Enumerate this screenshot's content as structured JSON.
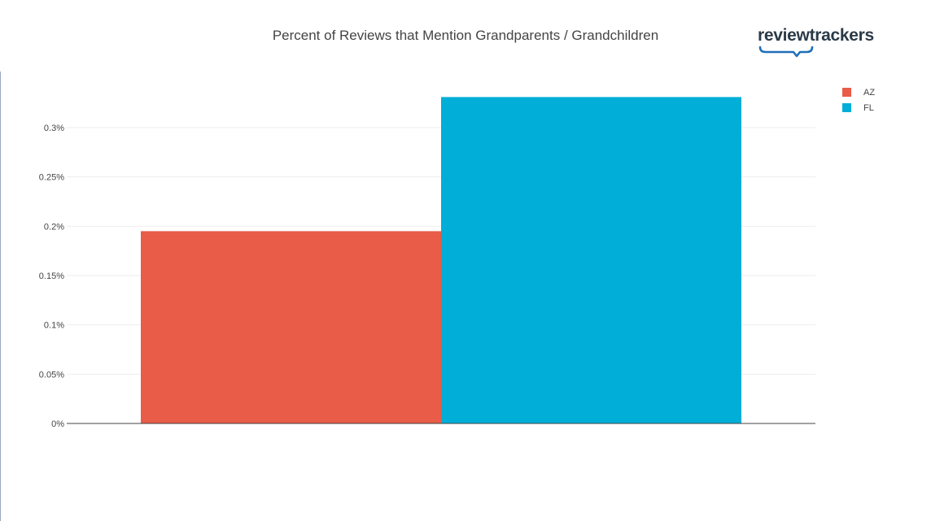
{
  "brand": {
    "name": "reviewtrackers",
    "accent": "#1e6fb8"
  },
  "chart_data": {
    "type": "bar",
    "title": "Percent of Reviews that Mention Grandparents / Grandchildren",
    "xlabel": "",
    "ylabel": "",
    "categories": [
      ""
    ],
    "series": [
      {
        "name": "AZ",
        "values": [
          0.195
        ],
        "color": "#e85c48"
      },
      {
        "name": "FL",
        "values": [
          0.331
        ],
        "color": "#00aed8"
      }
    ],
    "ylim": [
      0,
      0.33
    ],
    "yticks": [
      0,
      0.05,
      0.1,
      0.15,
      0.2,
      0.25,
      0.3
    ],
    "ytick_labels": [
      "0%",
      "0.05%",
      "0.1%",
      "0.15%",
      "0.2%",
      "0.25%",
      "0.3%"
    ],
    "grid": true,
    "legend_position": "top-right"
  }
}
